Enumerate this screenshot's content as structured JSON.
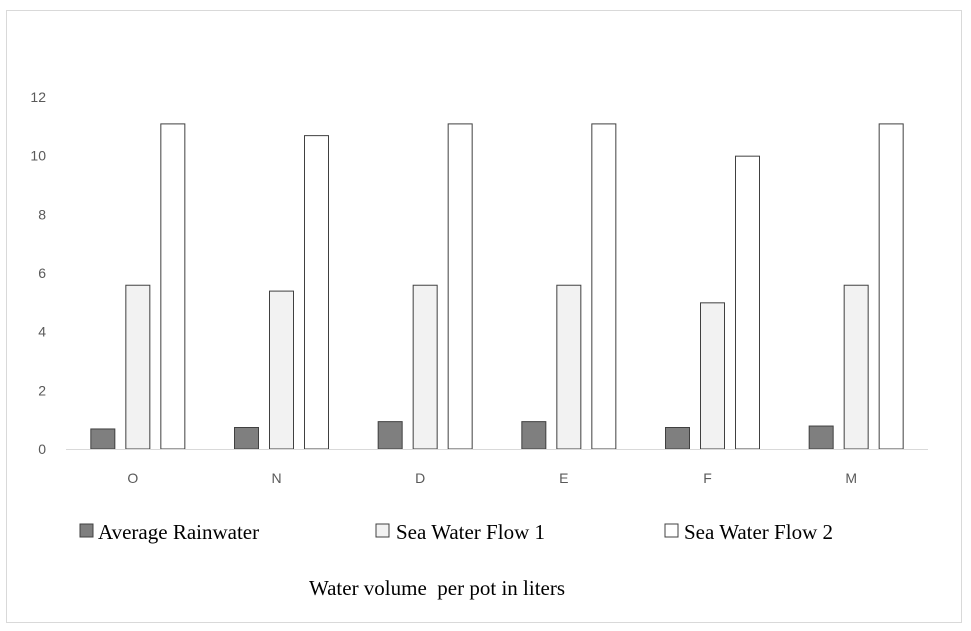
{
  "chart_data": {
    "type": "bar",
    "title": "",
    "xlabel": "Water volume  per pot in liters",
    "ylabel": "",
    "categories": [
      "O",
      "N",
      "D",
      "E",
      "F",
      "M"
    ],
    "ylim": [
      0,
      12
    ],
    "yticks": [
      0,
      2,
      4,
      6,
      8,
      10,
      12
    ],
    "grid": false,
    "legend_position": "bottom",
    "series": [
      {
        "name": "Average Rainwater",
        "color": "#7f7f7f",
        "values": [
          0.7,
          0.75,
          0.95,
          0.95,
          0.75,
          0.8
        ]
      },
      {
        "name": "Sea Water Flow 1",
        "color": "#f2f2f2",
        "values": [
          5.6,
          5.4,
          5.6,
          5.6,
          5.0,
          5.6
        ]
      },
      {
        "name": "Sea Water Flow 2",
        "color": "#ffffff",
        "values": [
          11.1,
          10.7,
          11.1,
          11.1,
          10.0,
          11.1
        ]
      }
    ]
  }
}
